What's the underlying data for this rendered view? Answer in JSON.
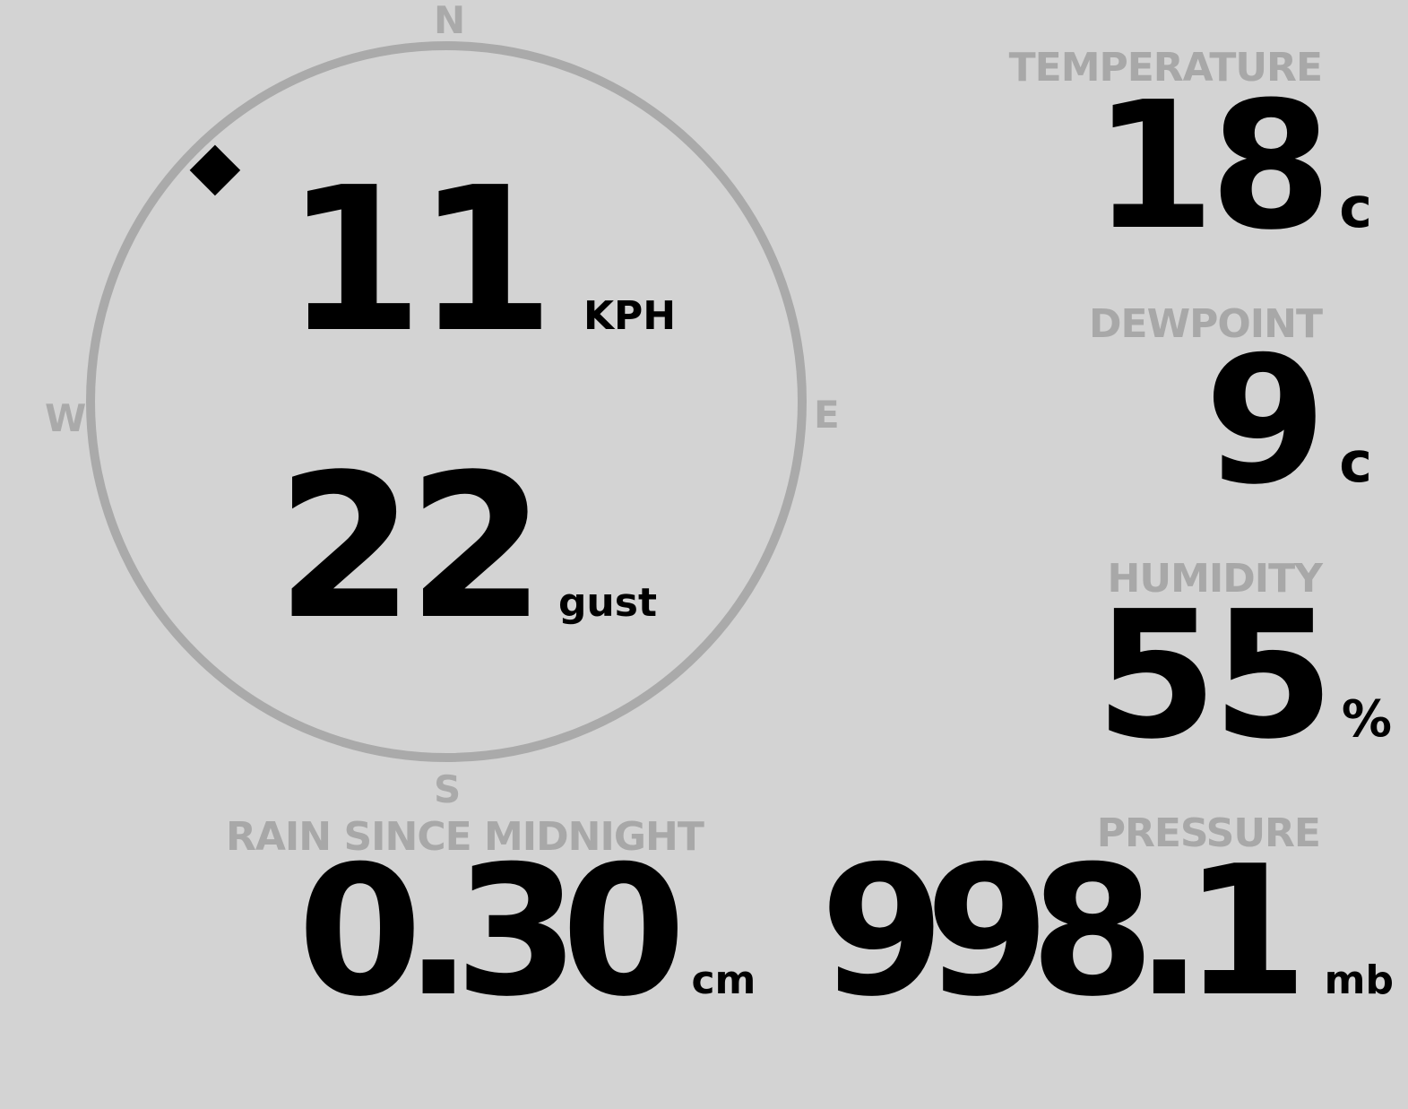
{
  "wind": {
    "direction_degrees": 315,
    "speed": "11",
    "speed_unit": "KPH",
    "gust": "22",
    "gust_unit": "gust",
    "compass": {
      "n": "N",
      "e": "E",
      "s": "S",
      "w": "W"
    }
  },
  "temperature": {
    "label": "TEMPERATURE",
    "value": "18",
    "unit": "c"
  },
  "dewpoint": {
    "label": "DEWPOINT",
    "value": "9",
    "unit": "c"
  },
  "humidity": {
    "label": "HUMIDITY",
    "value": "55",
    "unit": "%"
  },
  "rain": {
    "label": "RAIN SINCE MIDNIGHT",
    "value": "0.30",
    "unit": "cm"
  },
  "pressure": {
    "label": "PRESSURE",
    "value": "998.1",
    "unit": "mb"
  },
  "colors": {
    "background": "#d3d3d3",
    "label": "#a8a8a8",
    "value": "#000000",
    "ring": "#aaaaaa"
  }
}
